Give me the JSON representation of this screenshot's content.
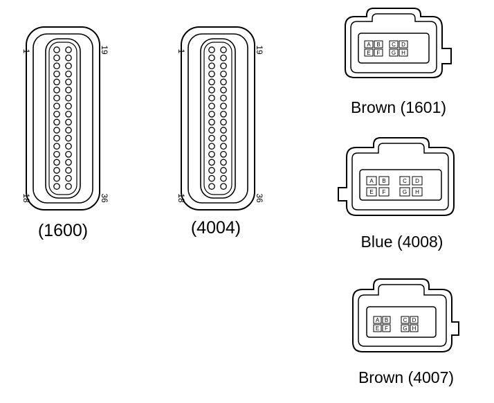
{
  "connectors": [
    {
      "id": "c1600",
      "label": "(1600)",
      "pins": [
        "1",
        "19",
        "18",
        "36"
      ]
    },
    {
      "id": "c4004",
      "label": "(4004)",
      "pins": [
        "1",
        "19",
        "18",
        "36"
      ]
    },
    {
      "id": "c1601",
      "label": "Brown (1601)",
      "cells": [
        "A",
        "B",
        "C",
        "D",
        "E",
        "F",
        "G",
        "H"
      ]
    },
    {
      "id": "c4008",
      "label": "Blue (4008)",
      "cells": [
        "A",
        "B",
        "C",
        "D",
        "E",
        "F",
        "G",
        "H"
      ]
    },
    {
      "id": "c4007",
      "label": "Brown (4007)",
      "cells": [
        "A",
        "B",
        "C",
        "D",
        "E",
        "F",
        "G",
        "H"
      ]
    }
  ],
  "colors": {
    "line": "#000000",
    "background": "#ffffff"
  }
}
